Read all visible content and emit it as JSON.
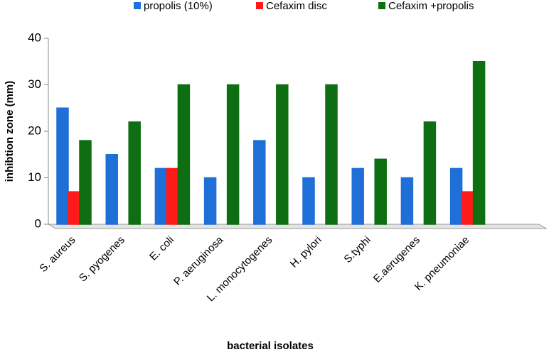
{
  "chart_data": {
    "type": "bar",
    "categories": [
      "S. aureus",
      "S. pyogenes",
      "E. coli",
      "P. aeruginosa",
      "L. monocytogenes",
      "H. pylori",
      "S.typhi",
      "E.aerugenes",
      "K. pneumoniae"
    ],
    "series": [
      {
        "name": "propolis (10%)",
        "color": "#1f6fd8",
        "values": [
          25,
          15,
          12,
          10,
          18,
          10,
          12,
          10,
          12
        ]
      },
      {
        "name": "Cefaxim disc",
        "color": "#ff1a1a",
        "values": [
          7,
          0,
          12,
          0,
          0,
          0,
          0,
          0,
          7
        ]
      },
      {
        "name": "Cefaxim +propolis",
        "color": "#0e6e12",
        "values": [
          18,
          22,
          30,
          30,
          30,
          30,
          14,
          22,
          35
        ]
      }
    ],
    "ylim": [
      0,
      40
    ],
    "yticks": [
      0,
      10,
      20,
      30,
      40
    ],
    "y_label": "inhibtion zone  (mm)",
    "x_label": "bacterial isolates",
    "legend": "top"
  }
}
